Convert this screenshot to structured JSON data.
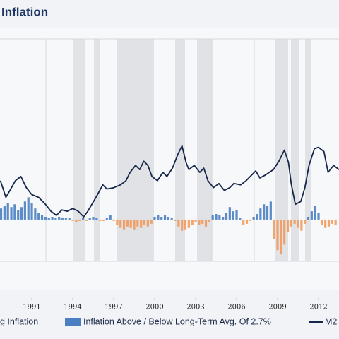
{
  "chart_data": {
    "type": "line_bar",
    "title": "Inflation",
    "xlim": [
      1988.67,
      2013.5
    ],
    "ylim": [
      -3,
      13
    ],
    "xticks": [
      1991,
      1994,
      1997,
      2000,
      2003,
      2006,
      2009,
      2012
    ],
    "extra_legend": [
      "g Inflation"
    ],
    "series": [
      {
        "name": "M2",
        "kind": "line",
        "color": "#16254a",
        "x": [
          1988.7,
          1989.1,
          1989.4,
          1989.8,
          1990.2,
          1990.6,
          1991.0,
          1991.5,
          1992.0,
          1992.4,
          1992.8,
          1993.2,
          1993.6,
          1994.0,
          1994.4,
          1994.8,
          1995.1,
          1995.7,
          1996.2,
          1996.5,
          1997.0,
          1997.5,
          1997.9,
          1998.2,
          1998.6,
          1998.9,
          1999.2,
          1999.5,
          1999.8,
          2000.2,
          2000.6,
          2000.9,
          2001.3,
          2001.7,
          2002.0,
          2002.3,
          2002.5,
          2002.9,
          2003.3,
          2003.6,
          2003.9,
          2004.3,
          2004.7,
          2005.1,
          2005.5,
          2005.8,
          2006.3,
          2006.7,
          2007.0,
          2007.4,
          2007.7,
          2008.1,
          2008.4,
          2008.7,
          2009.1,
          2009.5,
          2009.8,
          2010.0,
          2010.3,
          2010.7,
          2011.0,
          2011.3,
          2011.7,
          2012.0,
          2012.4,
          2012.7,
          2013.1,
          2013.5
        ],
        "values": [
          2.8,
          1.6,
          2.1,
          2.8,
          3.1,
          2.3,
          1.8,
          1.6,
          1.1,
          0.6,
          0.3,
          0.7,
          0.6,
          0.8,
          0.6,
          0.2,
          0.6,
          1.6,
          2.5,
          2.2,
          2.3,
          2.5,
          2.8,
          3.4,
          3.9,
          3.6,
          4.2,
          3.9,
          3.1,
          2.8,
          3.4,
          3.1,
          3.7,
          4.7,
          5.3,
          4.1,
          3.6,
          3.9,
          3.4,
          3.7,
          2.8,
          2.3,
          2.6,
          2.1,
          2.3,
          2.6,
          2.5,
          2.8,
          3.1,
          3.5,
          3.0,
          3.2,
          3.4,
          3.6,
          4.2,
          5.0,
          4.1,
          2.6,
          1.1,
          1.3,
          2.3,
          3.9,
          5.1,
          5.2,
          4.9,
          3.4,
          3.9,
          3.6
        ]
      },
      {
        "name": "Inflation Above / Below Long-Term Avg. Of 2.7%",
        "kind": "bar",
        "color": "#4a7fc1",
        "negative_color": "#ef9a5c",
        "x": [
          1988.75,
          1989,
          1989.25,
          1989.5,
          1989.75,
          1990,
          1990.25,
          1990.5,
          1990.75,
          1991,
          1991.25,
          1991.5,
          1991.75,
          1992,
          1992.25,
          1992.5,
          1992.75,
          1993,
          1993.25,
          1993.5,
          1993.75,
          1994,
          1994.25,
          1994.5,
          1994.75,
          1995,
          1995.25,
          1995.5,
          1995.75,
          1996,
          1996.25,
          1996.5,
          1996.75,
          1997,
          1997.25,
          1997.5,
          1997.75,
          1998,
          1998.25,
          1998.5,
          1998.75,
          1999,
          1999.25,
          1999.5,
          1999.75,
          2000,
          2000.25,
          2000.5,
          2000.75,
          2001,
          2001.25,
          2001.5,
          2001.75,
          2002,
          2002.25,
          2002.5,
          2002.75,
          2003,
          2003.25,
          2003.5,
          2003.75,
          2004,
          2004.25,
          2004.5,
          2004.75,
          2005,
          2005.25,
          2005.5,
          2005.75,
          2006,
          2006.25,
          2006.5,
          2006.75,
          2007,
          2007.25,
          2007.5,
          2007.75,
          2008,
          2008.25,
          2008.5,
          2008.75,
          2009,
          2009.25,
          2009.5,
          2009.75,
          2010,
          2010.25,
          2010.5,
          2010.75,
          2011,
          2011.25,
          2011.5,
          2011.75,
          2012,
          2012.25,
          2012.5,
          2012.75,
          2013,
          2013.25
        ],
        "values": [
          0.8,
          1.0,
          1.2,
          0.9,
          1.1,
          0.7,
          0.9,
          1.3,
          1.6,
          1.2,
          0.8,
          0.5,
          0.3,
          0.2,
          0.1,
          0.2,
          0.1,
          0.2,
          0.1,
          0.1,
          0.1,
          -0.1,
          -0.2,
          -0.1,
          0.1,
          -0.1,
          0.1,
          0.2,
          0.1,
          -0.1,
          -0.1,
          0.1,
          0.3,
          -0.1,
          -0.4,
          -0.6,
          -0.7,
          -0.5,
          -0.6,
          -0.7,
          -0.5,
          -0.6,
          -0.4,
          -0.5,
          -0.3,
          0.2,
          0.3,
          0.2,
          0.3,
          0.2,
          0.1,
          -0.1,
          -0.5,
          -0.8,
          -0.7,
          -0.6,
          -0.4,
          -0.2,
          -0.4,
          -0.3,
          -0.5,
          -0.2,
          0.3,
          0.4,
          0.3,
          0.2,
          0.5,
          0.9,
          0.6,
          0.7,
          0.1,
          -0.4,
          -0.3,
          -0.1,
          0.2,
          0.4,
          0.8,
          1.1,
          1.0,
          1.3,
          -1.4,
          -2.2,
          -2.5,
          -1.8,
          -0.9,
          -0.5,
          -0.3,
          -0.6,
          -0.8,
          -0.3,
          0.2,
          0.6,
          1.0,
          0.5,
          -0.4,
          -0.6,
          -0.5,
          -0.3,
          -0.4
        ]
      }
    ]
  }
}
